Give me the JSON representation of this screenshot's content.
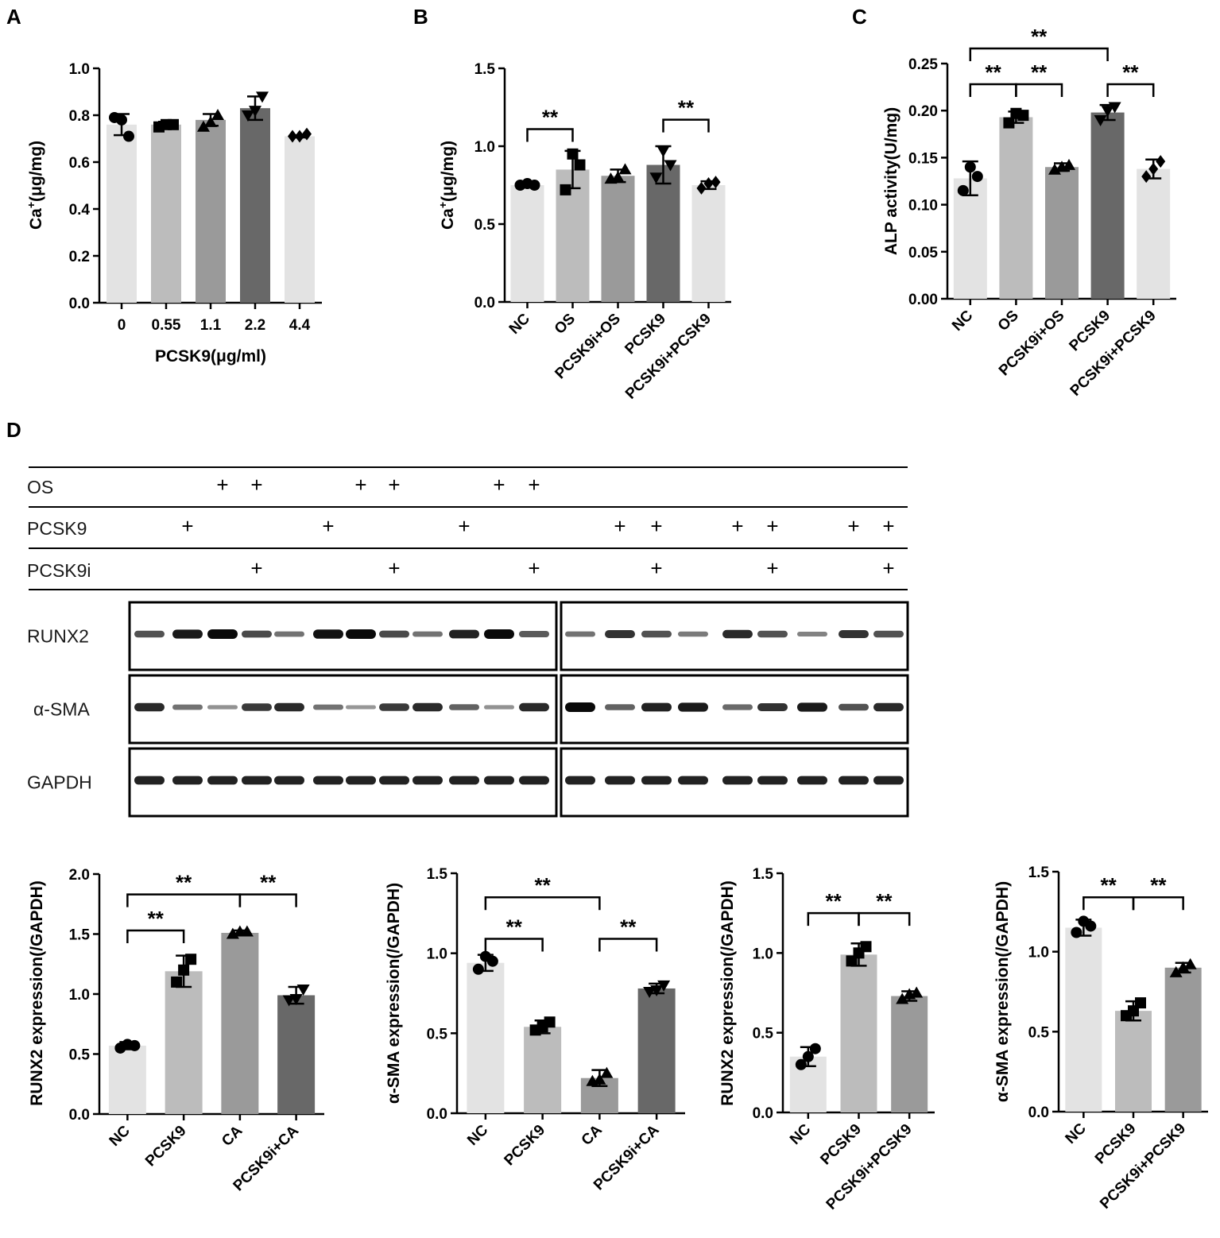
{
  "panel_labels": {
    "A": "A",
    "B": "B",
    "C": "C",
    "D": "D"
  },
  "chart_data": [
    {
      "id": "A",
      "type": "bar",
      "title": "",
      "xlabel": "PCSK9(μg/ml)",
      "ylabel_main": "Ca",
      "ylabel_sup": "+",
      "ylabel_rest": "(μg/mg)",
      "categories": [
        "0",
        "0.55",
        "1.1",
        "2.2",
        "4.4"
      ],
      "values": [
        0.76,
        0.76,
        0.78,
        0.83,
        0.71
      ],
      "error": [
        0.045,
        0.012,
        0.025,
        0.05,
        0.005
      ],
      "points": [
        [
          0.79,
          0.78,
          0.71
        ],
        [
          0.75,
          0.76,
          0.76
        ],
        [
          0.75,
          0.77,
          0.8
        ],
        [
          0.8,
          0.82,
          0.88
        ],
        [
          0.71,
          0.71,
          0.72
        ]
      ],
      "markers": [
        "circle",
        "square",
        "triangle",
        "triangle-down",
        "diamond"
      ],
      "colors": [
        "#e3e3e3",
        "#bcbcbc",
        "#9a9a9a",
        "#686868",
        "#e3e3e3"
      ],
      "ylim": [
        0,
        1.0
      ],
      "yticks": [
        "0.0",
        "0.2",
        "0.4",
        "0.6",
        "0.8",
        "1.0"
      ],
      "rotate_x": false,
      "significance": []
    },
    {
      "id": "B",
      "type": "bar",
      "title": "",
      "xlabel": "",
      "ylabel_main": "Ca",
      "ylabel_sup": "+",
      "ylabel_rest": "(μg/mg)",
      "categories": [
        "NC",
        "OS",
        "PCSK9i+OS",
        "PCSK9",
        "PCSK9i+PCSK9"
      ],
      "values": [
        0.75,
        0.85,
        0.81,
        0.88,
        0.75
      ],
      "error": [
        0.012,
        0.12,
        0.04,
        0.12,
        0.025
      ],
      "points": [
        [
          0.75,
          0.76,
          0.75
        ],
        [
          0.72,
          0.95,
          0.88
        ],
        [
          0.79,
          0.8,
          0.85
        ],
        [
          0.8,
          0.97,
          0.88
        ],
        [
          0.73,
          0.76,
          0.77
        ]
      ],
      "markers": [
        "circle",
        "square",
        "triangle",
        "triangle-down",
        "diamond"
      ],
      "colors": [
        "#e3e3e3",
        "#bcbcbc",
        "#9a9a9a",
        "#686868",
        "#e3e3e3"
      ],
      "ylim": [
        0,
        1.5
      ],
      "yticks": [
        "0.0",
        "0.5",
        "1.0",
        "1.5"
      ],
      "rotate_x": true,
      "significance": [
        {
          "from": 0,
          "to": 1,
          "y": 1.11,
          "label": "**"
        },
        {
          "from": 3,
          "to": 4,
          "y": 1.17,
          "label": "**"
        }
      ]
    },
    {
      "id": "C",
      "type": "bar",
      "title": "",
      "xlabel": "",
      "ylabel_main": "ALP activity(U/mg)",
      "ylabel_sup": "",
      "ylabel_rest": "",
      "categories": [
        "NC",
        "OS",
        "PCSK9i+OS",
        "PCSK9",
        "PCSK9i+PCSK9"
      ],
      "values": [
        0.128,
        0.193,
        0.14,
        0.198,
        0.138
      ],
      "error": [
        0.018,
        0.006,
        0.004,
        0.008,
        0.01
      ],
      "points": [
        [
          0.115,
          0.14,
          0.13
        ],
        [
          0.187,
          0.197,
          0.195
        ],
        [
          0.137,
          0.14,
          0.142
        ],
        [
          0.19,
          0.2,
          0.204
        ],
        [
          0.13,
          0.138,
          0.146
        ]
      ],
      "markers": [
        "circle",
        "square",
        "triangle",
        "triangle-down",
        "diamond"
      ],
      "colors": [
        "#e3e3e3",
        "#bcbcbc",
        "#9a9a9a",
        "#686868",
        "#e3e3e3"
      ],
      "ylim": [
        0,
        0.25
      ],
      "yticks": [
        "0.00",
        "0.05",
        "0.10",
        "0.15",
        "0.20",
        "0.25"
      ],
      "rotate_x": true,
      "significance": [
        {
          "from": 0,
          "to": 3,
          "y": 0.266,
          "label": "**"
        },
        {
          "from": 0,
          "to": 1,
          "y": 0.228,
          "label": "**"
        },
        {
          "from": 1,
          "to": 2,
          "y": 0.228,
          "label": "**"
        },
        {
          "from": 3,
          "to": 4,
          "y": 0.228,
          "label": "**"
        }
      ]
    },
    {
      "id": "D1",
      "type": "bar",
      "title": "",
      "xlabel": "",
      "ylabel_main": "RUNX2 expression(/GAPDH)",
      "ylabel_sup": "",
      "ylabel_rest": "",
      "categories": [
        "NC",
        "PCSK9",
        "CA",
        "PCSK9i+CA"
      ],
      "values": [
        0.57,
        1.19,
        1.51,
        0.99
      ],
      "error": [
        0.03,
        0.13,
        0.02,
        0.07
      ],
      "points": [
        [
          0.55,
          0.58,
          0.57
        ],
        [
          1.1,
          1.2,
          1.29
        ],
        [
          1.5,
          1.52,
          1.52
        ],
        [
          0.95,
          0.96,
          1.04
        ]
      ],
      "markers": [
        "circle",
        "square",
        "triangle",
        "triangle-down"
      ],
      "colors": [
        "#e3e3e3",
        "#bcbcbc",
        "#9a9a9a",
        "#686868"
      ],
      "ylim": [
        0,
        2.0
      ],
      "yticks": [
        "0.0",
        "0.5",
        "1.0",
        "1.5",
        "2.0"
      ],
      "rotate_x": true,
      "significance": [
        {
          "from": 0,
          "to": 2,
          "y": 1.83,
          "label": "**"
        },
        {
          "from": 2,
          "to": 3,
          "y": 1.83,
          "label": "**"
        },
        {
          "from": 0,
          "to": 1,
          "y": 1.53,
          "label": "**"
        }
      ]
    },
    {
      "id": "D2",
      "type": "bar",
      "title": "",
      "xlabel": "",
      "ylabel_main": "α-SMA expression(/GAPDH)",
      "ylabel_sup": "",
      "ylabel_rest": "",
      "categories": [
        "NC",
        "PCSK9",
        "CA",
        "PCSK9i+CA"
      ],
      "values": [
        0.94,
        0.54,
        0.22,
        0.78
      ],
      "error": [
        0.05,
        0.04,
        0.05,
        0.03
      ],
      "points": [
        [
          0.9,
          0.98,
          0.95
        ],
        [
          0.52,
          0.54,
          0.57
        ],
        [
          0.2,
          0.21,
          0.25
        ],
        [
          0.76,
          0.77,
          0.8
        ]
      ],
      "markers": [
        "circle",
        "square",
        "triangle",
        "triangle-down"
      ],
      "colors": [
        "#e3e3e3",
        "#bcbcbc",
        "#9a9a9a",
        "#686868"
      ],
      "ylim": [
        0,
        1.5
      ],
      "yticks": [
        "0.0",
        "0.5",
        "1.0",
        "1.5"
      ],
      "rotate_x": true,
      "significance": [
        {
          "from": 0,
          "to": 2,
          "y": 1.35,
          "label": "**"
        },
        {
          "from": 0,
          "to": 1,
          "y": 1.09,
          "label": "**"
        },
        {
          "from": 2,
          "to": 3,
          "y": 1.09,
          "label": "**"
        }
      ]
    },
    {
      "id": "D3",
      "type": "bar",
      "title": "",
      "xlabel": "",
      "ylabel_main": "RUNX2 expression(/GAPDH)",
      "ylabel_sup": "",
      "ylabel_rest": "",
      "categories": [
        "NC",
        "PCSK9",
        "PCSK9i+PCSK9"
      ],
      "values": [
        0.35,
        0.99,
        0.73
      ],
      "error": [
        0.06,
        0.07,
        0.03
      ],
      "points": [
        [
          0.3,
          0.35,
          0.4
        ],
        [
          0.95,
          1.0,
          1.04
        ],
        [
          0.71,
          0.74,
          0.75
        ]
      ],
      "markers": [
        "circle",
        "square",
        "triangle"
      ],
      "colors": [
        "#e3e3e3",
        "#bcbcbc",
        "#9a9a9a"
      ],
      "ylim": [
        0,
        1.5
      ],
      "yticks": [
        "0.0",
        "0.5",
        "1.0",
        "1.5"
      ],
      "rotate_x": true,
      "significance": [
        {
          "from": 0,
          "to": 1,
          "y": 1.25,
          "label": "**"
        },
        {
          "from": 1,
          "to": 2,
          "y": 1.25,
          "label": "**"
        }
      ]
    },
    {
      "id": "D4",
      "type": "bar",
      "title": "",
      "xlabel": "",
      "ylabel_main": "α-SMA expression(/GAPDH)",
      "ylabel_sup": "",
      "ylabel_rest": "",
      "categories": [
        "NC",
        "PCSK9",
        "PCSK9i+PCSK9"
      ],
      "values": [
        1.15,
        0.63,
        0.9
      ],
      "error": [
        0.05,
        0.06,
        0.03
      ],
      "points": [
        [
          1.12,
          1.19,
          1.16
        ],
        [
          0.6,
          0.63,
          0.68
        ],
        [
          0.87,
          0.9,
          0.92
        ]
      ],
      "markers": [
        "circle",
        "square",
        "triangle"
      ],
      "colors": [
        "#e3e3e3",
        "#bcbcbc",
        "#9a9a9a"
      ],
      "ylim": [
        0,
        1.5
      ],
      "yticks": [
        "0.0",
        "0.5",
        "1.0",
        "1.5"
      ],
      "rotate_x": true,
      "significance": [
        {
          "from": 0,
          "to": 1,
          "y": 1.34,
          "label": "**"
        },
        {
          "from": 1,
          "to": 2,
          "y": 1.34,
          "label": "**"
        }
      ]
    }
  ],
  "blot": {
    "rows": [
      {
        "label": "OS",
        "left_marks": [
          2,
          3,
          6,
          7,
          10,
          11
        ],
        "right_marks": []
      },
      {
        "label": "PCSK9",
        "left_marks": [
          1,
          5,
          9
        ],
        "right_marks": [
          1,
          2,
          4,
          5,
          7,
          8
        ]
      },
      {
        "label": "PCSK9i",
        "left_marks": [
          3,
          7,
          11
        ],
        "right_marks": [
          2,
          5,
          8
        ]
      }
    ],
    "plus": "+",
    "proteins": [
      {
        "name": "RUNX2",
        "left": [
          0.55,
          0.9,
          1.0,
          0.6,
          0.35,
          0.95,
          1.0,
          0.6,
          0.35,
          0.85,
          1.0,
          0.5
        ],
        "right": [
          0.35,
          0.75,
          0.55,
          0.3,
          0.8,
          0.55,
          0.25,
          0.75,
          0.55
        ]
      },
      {
        "name": "α-SMA",
        "left": [
          0.8,
          0.35,
          0.15,
          0.7,
          0.8,
          0.35,
          0.12,
          0.7,
          0.8,
          0.45,
          0.15,
          0.8
        ],
        "right": [
          1.0,
          0.45,
          0.85,
          0.9,
          0.4,
          0.75,
          0.9,
          0.55,
          0.8
        ]
      },
      {
        "name": "GAPDH",
        "left": [
          0.85,
          0.85,
          0.85,
          0.85,
          0.85,
          0.85,
          0.85,
          0.85,
          0.85,
          0.85,
          0.85,
          0.85
        ],
        "right": [
          0.85,
          0.85,
          0.85,
          0.85,
          0.85,
          0.85,
          0.85,
          0.85,
          0.85
        ]
      }
    ]
  }
}
